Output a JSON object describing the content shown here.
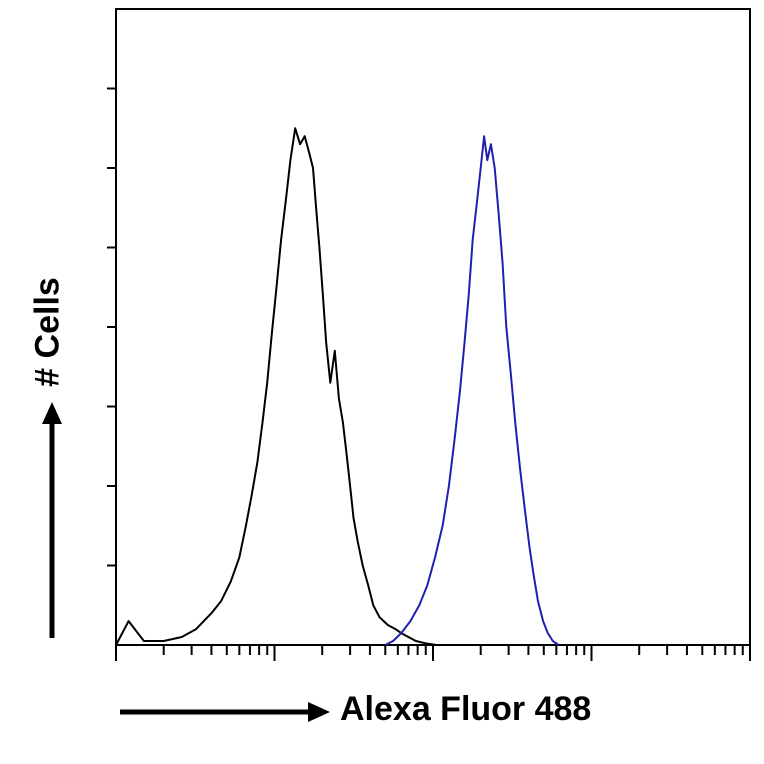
{
  "chart_data": {
    "type": "line",
    "title": "",
    "xlabel": "Alexa Fluor 488",
    "ylabel": "# Cells",
    "x_scale": "log",
    "xlim": [
      1,
      10000
    ],
    "ylim": [
      0,
      8
    ],
    "grid": false,
    "legend": "none",
    "series": [
      {
        "color": "#000000",
        "x": [
          1.0,
          1.2,
          1.5,
          2.0,
          2.6,
          3.2,
          4.0,
          4.6,
          5.3,
          6.0,
          6.6,
          7.2,
          7.8,
          8.4,
          9.0,
          9.6,
          10.3,
          11.0,
          11.8,
          12.6,
          13.5,
          14.5,
          15.5,
          16.5,
          17.5,
          18.3,
          19.2,
          20.2,
          21.2,
          22.5,
          24.0,
          25.5,
          27.0,
          28.5,
          30.0,
          31.5,
          33.5,
          36.0,
          39.0,
          42.0,
          46.0,
          52.0,
          58.0,
          63.0,
          70.0,
          78.0,
          90.0,
          105.0
        ],
        "y": [
          0.0,
          0.3,
          0.05,
          0.05,
          0.1,
          0.2,
          0.4,
          0.55,
          0.8,
          1.1,
          1.5,
          1.9,
          2.3,
          2.8,
          3.3,
          3.9,
          4.5,
          5.1,
          5.6,
          6.1,
          6.5,
          6.3,
          6.4,
          6.2,
          6.0,
          5.5,
          5.0,
          4.4,
          3.8,
          3.3,
          3.7,
          3.1,
          2.8,
          2.4,
          2.0,
          1.6,
          1.3,
          1.0,
          0.75,
          0.5,
          0.35,
          0.25,
          0.2,
          0.15,
          0.1,
          0.05,
          0.02,
          0.0
        ]
      },
      {
        "color": "#2020b0",
        "x": [
          50.0,
          56.0,
          63.0,
          72.0,
          82.0,
          92.0,
          103.0,
          115.0,
          126.0,
          137.0,
          148.0,
          158.0,
          168.0,
          178.0,
          190.0,
          200.0,
          210.0,
          220.0,
          232.0,
          245.0,
          260.0,
          275.0,
          290.0,
          310.0,
          330.0,
          355.0,
          380.0,
          405.0,
          430.0,
          460.0,
          495.0,
          530.0,
          570.0,
          620.0
        ],
        "y": [
          0.0,
          0.05,
          0.15,
          0.3,
          0.5,
          0.75,
          1.1,
          1.5,
          2.0,
          2.6,
          3.2,
          3.8,
          4.4,
          5.1,
          5.6,
          6.0,
          6.4,
          6.1,
          6.3,
          6.0,
          5.4,
          4.8,
          4.0,
          3.4,
          2.8,
          2.2,
          1.7,
          1.25,
          0.9,
          0.55,
          0.3,
          0.15,
          0.05,
          0.0
        ]
      }
    ]
  }
}
